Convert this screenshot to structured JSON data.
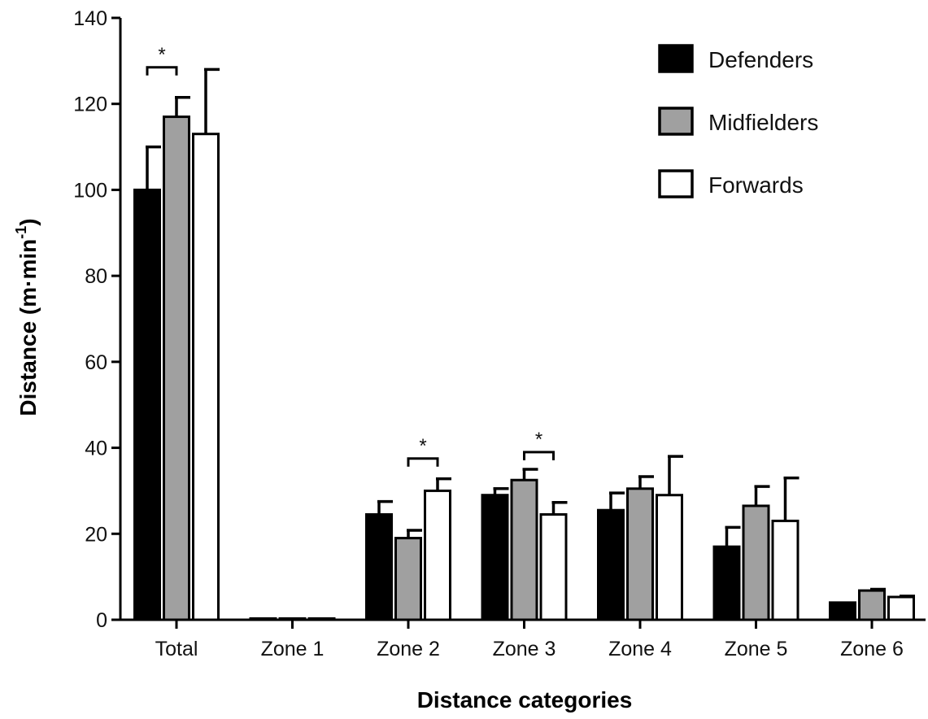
{
  "chart_data": {
    "type": "bar",
    "title": "",
    "xlabel": "Distance categories",
    "ylabel_main": "Distance (m·min",
    "ylabel_sup": "-1",
    "ylabel_tail": ")",
    "ylim": [
      0,
      140
    ],
    "yticks": [
      0,
      20,
      40,
      60,
      80,
      100,
      120,
      140
    ],
    "grid": false,
    "legend_position": "top-right",
    "categories": [
      "Total",
      "Zone 1",
      "Zone 2",
      "Zone 3",
      "Zone 4",
      "Zone 5",
      "Zone 6"
    ],
    "series": [
      {
        "name": "Defenders",
        "fill": "#000000",
        "values": [
          100,
          0.3,
          24.5,
          29,
          25.5,
          17,
          4
        ],
        "errors": [
          10,
          0,
          3,
          1.5,
          4,
          4.5,
          0
        ]
      },
      {
        "name": "Midfielders",
        "fill": "#a0a0a0",
        "values": [
          117,
          0.3,
          19,
          32.5,
          30.5,
          26.5,
          6.8
        ],
        "errors": [
          4.5,
          0,
          1.8,
          2.5,
          2.8,
          4.5,
          0.3
        ]
      },
      {
        "name": "Forwards",
        "fill": "#ffffff",
        "values": [
          113,
          0.3,
          30,
          24.5,
          29,
          23,
          5.3
        ],
        "errors": [
          15,
          0,
          2.8,
          2.8,
          9,
          10,
          0.2
        ]
      }
    ],
    "annotations": [
      {
        "category": 0,
        "from_series": 0,
        "to_series": 1,
        "y": 128.5,
        "label": "*"
      },
      {
        "category": 2,
        "from_series": 1,
        "to_series": 2,
        "y": 37.5,
        "label": "*"
      },
      {
        "category": 3,
        "from_series": 1,
        "to_series": 2,
        "y": 39,
        "label": "*"
      }
    ]
  }
}
